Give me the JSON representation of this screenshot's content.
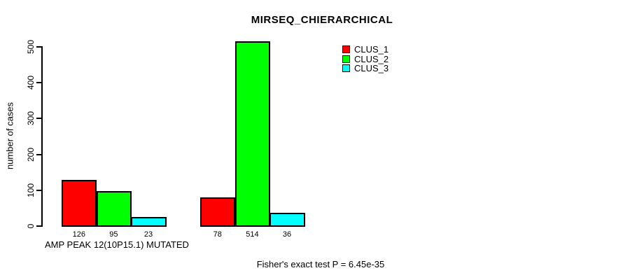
{
  "title": "MIRSEQ_CHIERARCHICAL",
  "chart_data": {
    "type": "bar",
    "title": "MIRSEQ_CHIERARCHICAL",
    "ylabel": "number of cases",
    "xlabel": "AMP PEAK 12(10P15.1) MUTATED",
    "annotation": "Fisher's exact test P = 6.45e-35",
    "ylim": [
      0,
      500
    ],
    "yticks": [
      0,
      100,
      200,
      300,
      400,
      500
    ],
    "grid": false,
    "legend_position": "top-right",
    "groups": [
      {
        "label": "AMP PEAK 12(10P15.1) MUTATED"
      },
      {
        "label": ""
      }
    ],
    "series": [
      {
        "name": "CLUS_1",
        "color": "#ff0000",
        "values": [
          126,
          78
        ]
      },
      {
        "name": "CLUS_2",
        "color": "#00ff00",
        "values": [
          95,
          514
        ]
      },
      {
        "name": "CLUS_3",
        "color": "#00ffff",
        "values": [
          23,
          36
        ]
      }
    ],
    "bar_value_labels": [
      [
        "126",
        "95",
        "23"
      ],
      [
        "78",
        "514",
        "36"
      ]
    ]
  }
}
